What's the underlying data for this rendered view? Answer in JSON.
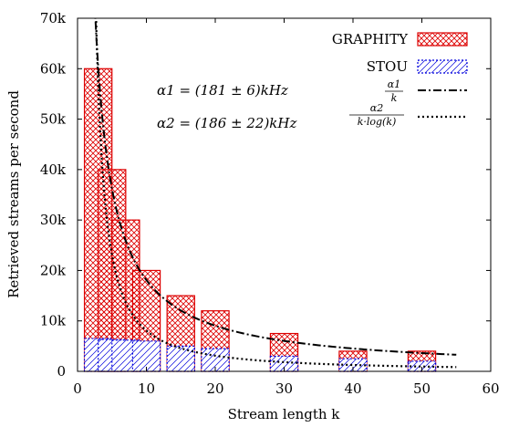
{
  "chart_data": {
    "type": "bar",
    "xlabel": "Stream length k",
    "ylabel": "Retrieved streams per second",
    "xlim": [
      0,
      60
    ],
    "ylim": [
      0,
      70000
    ],
    "x_ticks": [
      0,
      10,
      20,
      30,
      40,
      50,
      60
    ],
    "x_tick_labels": [
      "0",
      "10",
      "20",
      "30",
      "40",
      "50",
      "60"
    ],
    "y_ticks": [
      0,
      10000,
      20000,
      30000,
      40000,
      50000,
      60000,
      70000
    ],
    "y_tick_labels": [
      "0",
      "10k",
      "20k",
      "30k",
      "40k",
      "50k",
      "60k",
      "70k"
    ],
    "grid": false,
    "legend_position": "top-right",
    "bar_width": 4,
    "series": [
      {
        "name": "GRAPHITY",
        "kind": "bar",
        "color": "#dd0000",
        "pattern": "crosshatch",
        "x": [
          3,
          5,
          7,
          10,
          15,
          20,
          30,
          40,
          50
        ],
        "values": [
          60000,
          40000,
          30000,
          20000,
          15000,
          12000,
          7500,
          4000,
          4000
        ]
      },
      {
        "name": "STOU",
        "kind": "bar",
        "color": "#0000dd",
        "pattern": "diagonal",
        "x": [
          3,
          5,
          7,
          10,
          15,
          20,
          30,
          40,
          50
        ],
        "values": [
          6500,
          6300,
          6200,
          6000,
          5000,
          4500,
          3000,
          2500,
          2000
        ]
      },
      {
        "name": "α1/k",
        "kind": "line",
        "dash": "dash-dot",
        "alpha_k": 181,
        "formula": "alpha1/k",
        "x_range": [
          2.5,
          55
        ]
      },
      {
        "name": "α2/(k·log(k))",
        "kind": "line",
        "dash": "dotted",
        "alpha_k": 186,
        "formula": "alpha2/(k*log(k))",
        "x_range": [
          2.5,
          55
        ]
      }
    ],
    "legend_labels": {
      "graphity": "GRAPHITY",
      "stou": "STOU",
      "fit1_num": "α1",
      "fit1_den": "k",
      "fit2_num": "α2",
      "fit2_den": "k·log(k)"
    },
    "annotations": [
      "α1 = (181 ± 6)kHz",
      "α2 = (186 ± 22)kHz"
    ]
  }
}
